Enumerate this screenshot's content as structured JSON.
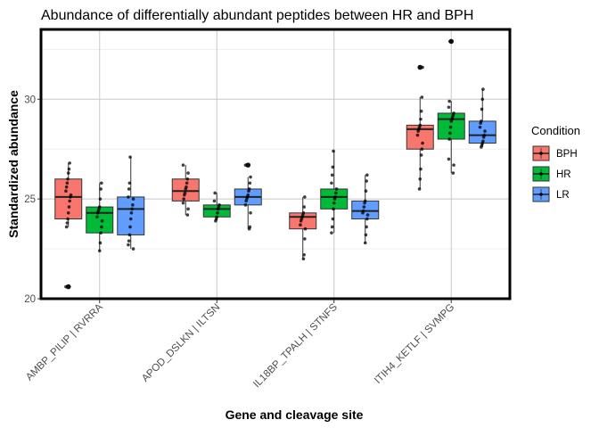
{
  "chart_data": {
    "type": "box",
    "title": "Abundance of differentially abundant peptides between HR and BPH",
    "xlabel": "Gene and cleavage site",
    "ylabel": "Standardized abundance",
    "ylim": [
      20,
      33.5
    ],
    "yticks": [
      20,
      25,
      30
    ],
    "grid": true,
    "legend": {
      "title": "Condition",
      "position": "right"
    },
    "categories": [
      "AMBP_PILIP | RVRRA",
      "APOD_DSLKN | ILTSN",
      "IL18BP_TPALH | STNFS",
      "ITIH4_KETLF | SVMPG"
    ],
    "series": [
      {
        "name": "BPH",
        "color": "#F8766D",
        "boxes": [
          {
            "min": 23.6,
            "q1": 24.0,
            "median": 25.1,
            "q3": 26.0,
            "max": 26.8,
            "outliers": [
              20.6
            ],
            "points": [
              20.6,
              23.6,
              23.8,
              24.0,
              24.3,
              24.6,
              24.9,
              25.1,
              25.2,
              25.4,
              25.6,
              25.8,
              26.0,
              26.3,
              26.5,
              26.8
            ]
          },
          {
            "min": 24.2,
            "q1": 24.9,
            "median": 25.4,
            "q3": 26.0,
            "max": 26.7,
            "outliers": [],
            "points": [
              24.2,
              24.5,
              24.8,
              25.0,
              25.2,
              25.3,
              25.5,
              25.6,
              25.8,
              26.0,
              26.3,
              26.7
            ]
          },
          {
            "min": 22.0,
            "q1": 23.5,
            "median": 24.1,
            "q3": 24.3,
            "max": 25.1,
            "outliers": [],
            "points": [
              22.0,
              22.2,
              23.0,
              23.5,
              23.7,
              23.9,
              24.0,
              24.1,
              24.2,
              24.3,
              24.6,
              25.1
            ]
          },
          {
            "min": 25.5,
            "q1": 27.5,
            "median": 28.5,
            "q3": 28.7,
            "max": 30.1,
            "outliers": [
              31.6
            ],
            "points": [
              25.5,
              26.0,
              26.5,
              27.2,
              27.5,
              27.8,
              28.2,
              28.4,
              28.5,
              28.6,
              28.7,
              29.0,
              29.4,
              30.1,
              31.6
            ]
          }
        ]
      },
      {
        "name": "HR",
        "color": "#00BA38",
        "boxes": [
          {
            "min": 22.4,
            "q1": 23.3,
            "median": 24.3,
            "q3": 24.6,
            "max": 25.8,
            "outliers": [],
            "points": [
              22.4,
              22.8,
              23.3,
              23.6,
              23.9,
              24.1,
              24.3,
              24.4,
              24.5,
              24.6,
              25.0,
              25.5,
              25.8
            ]
          },
          {
            "min": 23.9,
            "q1": 24.1,
            "median": 24.5,
            "q3": 24.7,
            "max": 25.3,
            "outliers": [],
            "points": [
              23.9,
              24.0,
              24.1,
              24.3,
              24.5,
              24.6,
              24.7,
              24.9,
              25.3
            ]
          },
          {
            "min": 23.3,
            "q1": 24.5,
            "median": 25.1,
            "q3": 25.5,
            "max": 27.4,
            "outliers": [],
            "points": [
              23.3,
              23.6,
              24.0,
              24.5,
              24.8,
              25.0,
              25.1,
              25.3,
              25.5,
              25.8,
              26.2,
              26.6,
              27.4
            ]
          },
          {
            "min": 26.3,
            "q1": 28.0,
            "median": 29.0,
            "q3": 29.3,
            "max": 29.9,
            "outliers": [
              32.9
            ],
            "points": [
              26.3,
              26.7,
              27.0,
              28.0,
              28.3,
              28.6,
              28.9,
              29.0,
              29.1,
              29.2,
              29.3,
              29.6,
              29.9,
              32.9
            ]
          }
        ]
      },
      {
        "name": "LR",
        "color": "#619CFF",
        "boxes": [
          {
            "min": 22.5,
            "q1": 23.2,
            "median": 24.5,
            "q3": 25.1,
            "max": 27.1,
            "outliers": [],
            "points": [
              22.5,
              22.7,
              22.9,
              23.2,
              23.6,
              24.0,
              24.3,
              24.5,
              24.7,
              25.0,
              25.1,
              25.5,
              25.8,
              27.1
            ]
          },
          {
            "min": 23.5,
            "q1": 24.7,
            "median": 25.1,
            "q3": 25.5,
            "max": 26.1,
            "outliers": [
              26.7
            ],
            "points": [
              23.5,
              23.6,
              24.3,
              24.7,
              24.9,
              25.0,
              25.1,
              25.2,
              25.4,
              25.5,
              25.8,
              26.1,
              26.7
            ]
          },
          {
            "min": 22.8,
            "q1": 24.0,
            "median": 24.4,
            "q3": 24.9,
            "max": 26.2,
            "outliers": [],
            "points": [
              22.8,
              23.2,
              23.6,
              24.0,
              24.2,
              24.3,
              24.4,
              24.6,
              24.8,
              24.9,
              25.4,
              25.9,
              26.2
            ]
          },
          {
            "min": 27.6,
            "q1": 27.8,
            "median": 28.2,
            "q3": 28.9,
            "max": 30.5,
            "outliers": [],
            "points": [
              27.6,
              27.7,
              27.8,
              27.9,
              28.1,
              28.2,
              28.4,
              28.6,
              28.8,
              28.9,
              29.5,
              30.0,
              30.5
            ]
          }
        ]
      }
    ]
  }
}
